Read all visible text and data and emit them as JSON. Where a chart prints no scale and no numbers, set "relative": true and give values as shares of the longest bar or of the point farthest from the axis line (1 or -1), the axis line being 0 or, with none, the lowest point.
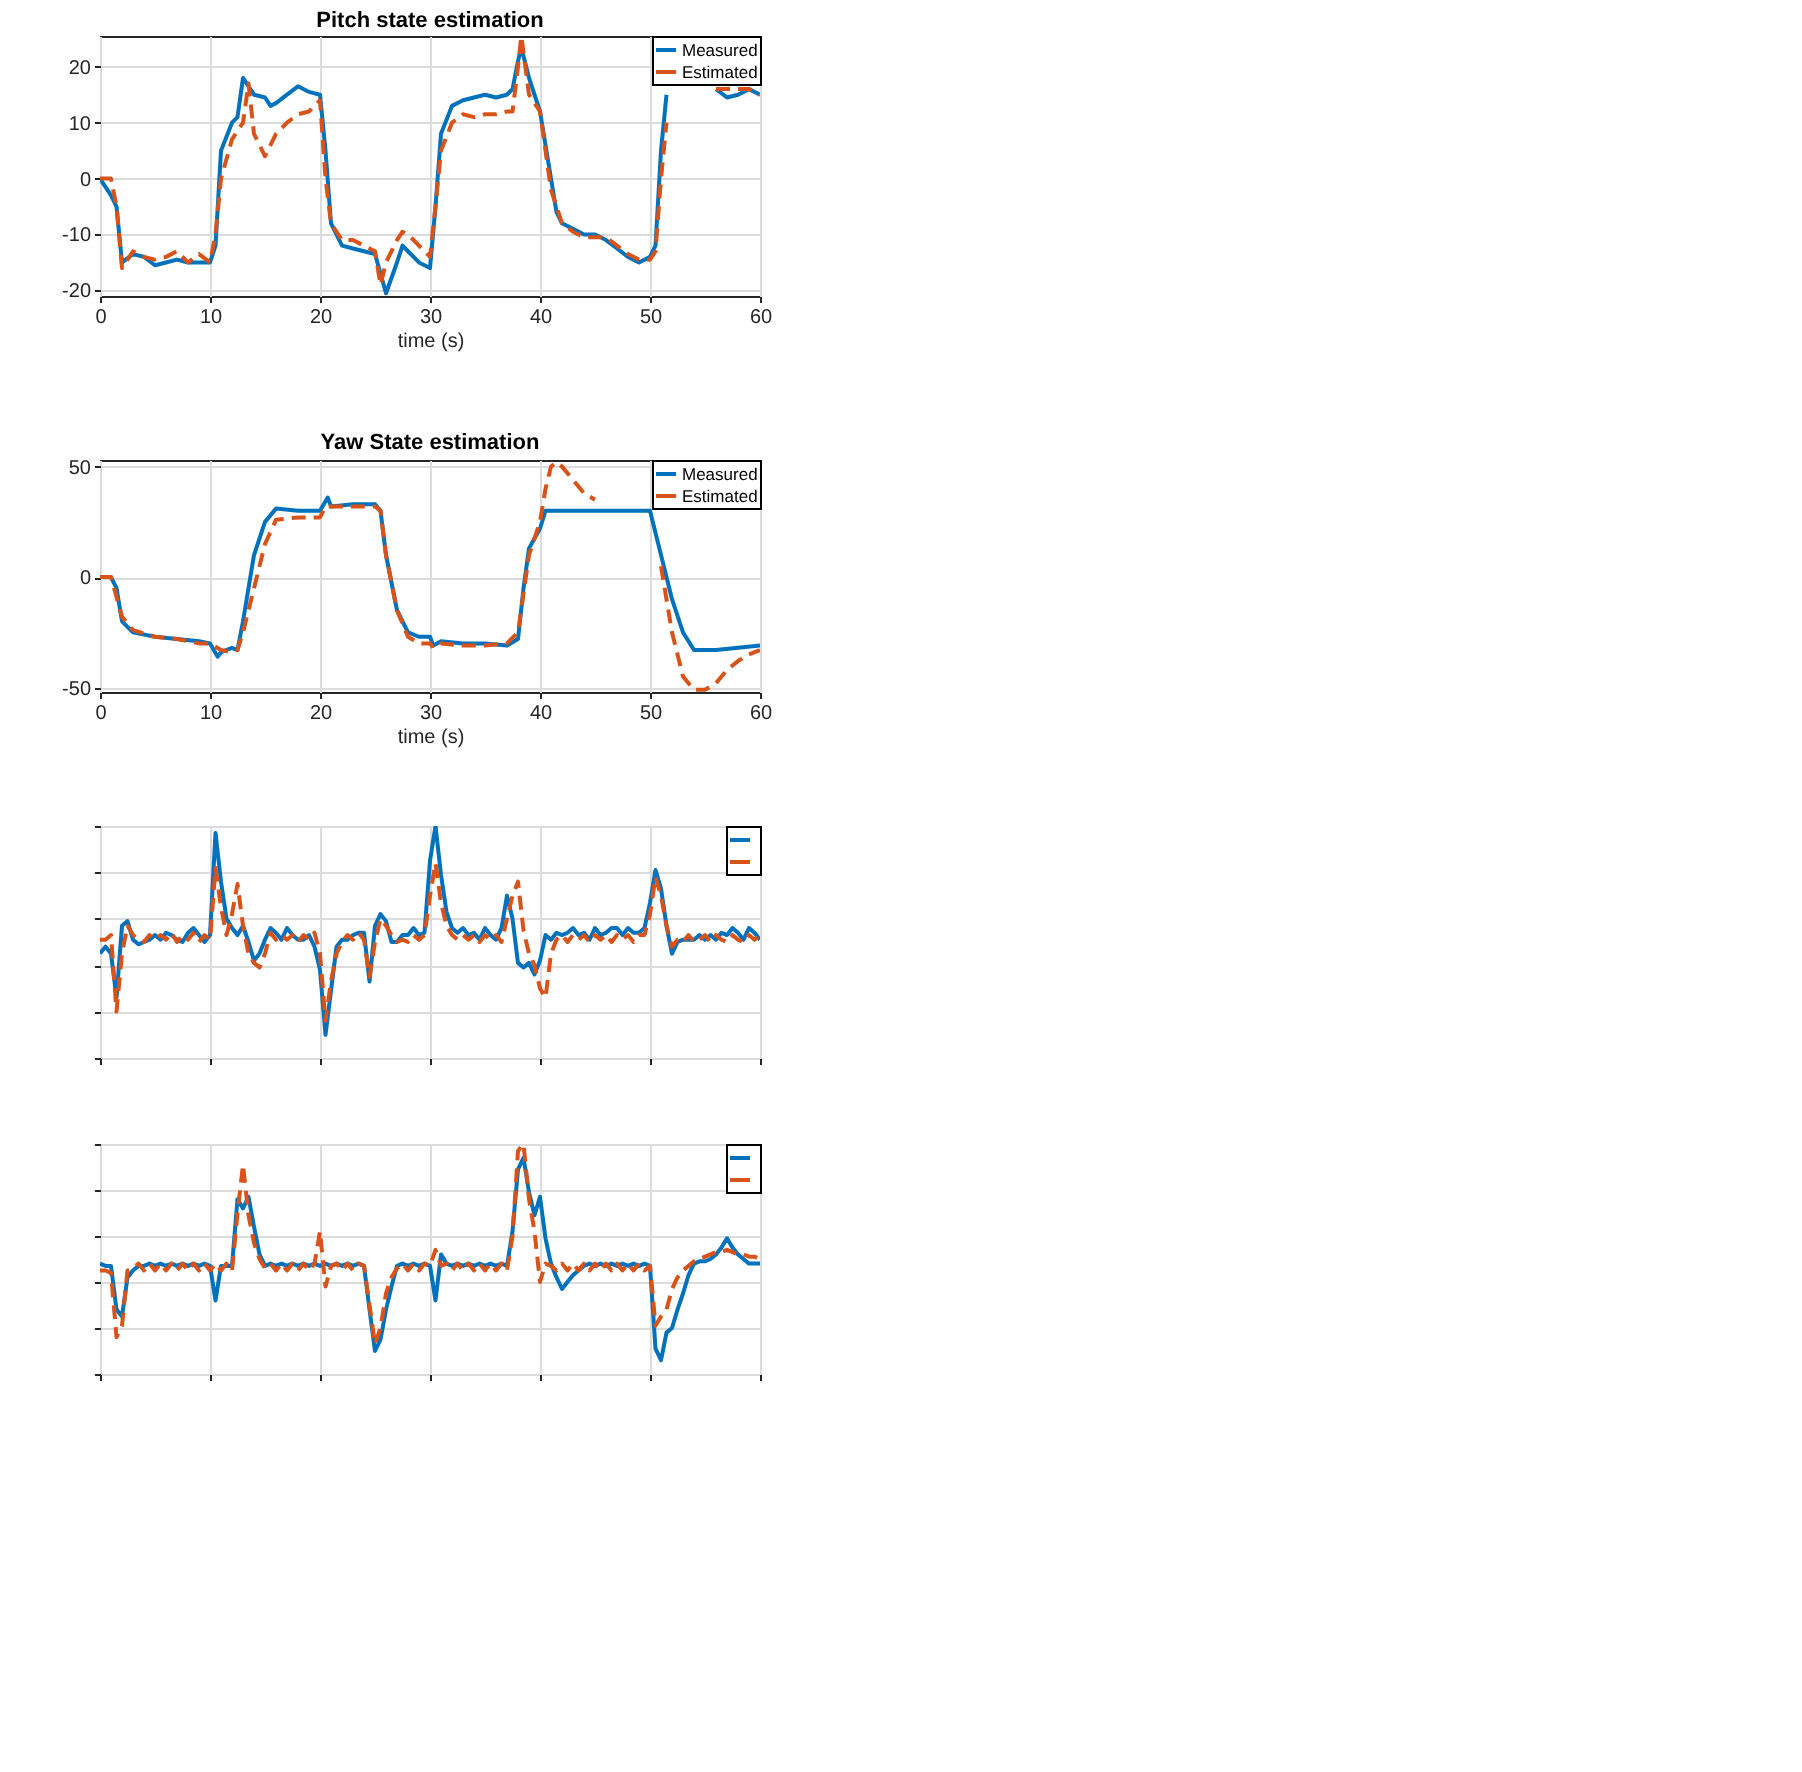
{
  "chart_data": [
    {
      "type": "line",
      "title": "Pitch state estimation",
      "xlabel": "time (s)",
      "xlim": [
        0,
        60
      ],
      "xticks": [
        0,
        10,
        20,
        30,
        40,
        50,
        60
      ],
      "ylim": [
        -21,
        25.5
      ],
      "yticks": [
        -20,
        -10,
        0,
        10,
        20
      ],
      "grid": true,
      "legend": "top right",
      "series": [
        {
          "name": "Measured",
          "color": "#0072bd",
          "line_style": "solid",
          "x": [
            0,
            1,
            1.5,
            2,
            3,
            4,
            5,
            6,
            7,
            8,
            9,
            10,
            10.5,
            11,
            12,
            12.5,
            13,
            14,
            15,
            15.5,
            16,
            17,
            18,
            19,
            20,
            20.5,
            21,
            22,
            23,
            24,
            25,
            25.5,
            26,
            27,
            27.5,
            28,
            29,
            30,
            30.5,
            31,
            32,
            33,
            34,
            35,
            36,
            37,
            37.5,
            38,
            38.3,
            39,
            40,
            41,
            41.5,
            42,
            43,
            44,
            45,
            46,
            47,
            48,
            49,
            50,
            50.5,
            51,
            51.5,
            52,
            53,
            54,
            55,
            56,
            57,
            58,
            59,
            60
          ],
          "values": [
            0,
            -3,
            -5,
            -15,
            -13.5,
            -14,
            -15.5,
            -15,
            -14.5,
            -15,
            -15,
            -15,
            -12,
            5,
            10,
            11,
            18,
            15,
            14.5,
            13,
            13.5,
            15,
            16.5,
            15.5,
            15,
            5,
            -8,
            -12,
            -12.5,
            -13,
            -13.5,
            -17,
            -20.5,
            -15,
            -12,
            -13,
            -15,
            -16,
            -5,
            8,
            13,
            14,
            14.5,
            15,
            14.5,
            15,
            16,
            21,
            23.5,
            18,
            12,
            0,
            -6,
            -8,
            -9,
            -10,
            -10,
            -11,
            -12.5,
            -14,
            -15,
            -14,
            -12,
            5,
            15,
            null,
            null,
            null,
            null,
            16,
            14.5,
            15,
            16,
            15
          ]
        },
        {
          "name": "Estimated",
          "color": "#d95319",
          "line_style": "dashed",
          "x": [
            0,
            1,
            1.5,
            2,
            3,
            4,
            5,
            6,
            7,
            8,
            9,
            10,
            10.5,
            11,
            12,
            13,
            13.5,
            14,
            15,
            16,
            17,
            18,
            19,
            20,
            20.5,
            21,
            22,
            23,
            24,
            25,
            25.5,
            26,
            27,
            27.5,
            28,
            29,
            30,
            30.5,
            31,
            32,
            33,
            34,
            35,
            36,
            37,
            37.5,
            38,
            38.3,
            39,
            40,
            41,
            42,
            43,
            44,
            45,
            46,
            47,
            48,
            49,
            50,
            50.5,
            51,
            51.5,
            52,
            53,
            54,
            55,
            56,
            57,
            58,
            59,
            60
          ],
          "values": [
            0,
            0,
            -5,
            -16,
            -13,
            -14,
            -14.5,
            -14,
            -13,
            -15,
            -13.5,
            -15,
            -10,
            0,
            7,
            10,
            17,
            8,
            4,
            8,
            10,
            11.5,
            12,
            14,
            0,
            -8,
            -11,
            -11,
            -12,
            -13,
            -19,
            -15,
            -11,
            -9.5,
            -10,
            -12,
            -14,
            -5,
            5,
            10,
            11.5,
            11,
            11.5,
            11.5,
            12,
            12,
            20,
            25.5,
            15,
            12,
            -2,
            -8,
            -9.5,
            -10.5,
            -10.5,
            -10.5,
            -12,
            -13.5,
            -14.5,
            -14.5,
            -13,
            0,
            10,
            null,
            null,
            null,
            null,
            16,
            16,
            16,
            16,
            15
          ]
        }
      ]
    },
    {
      "type": "line",
      "title": "Yaw State estimation",
      "xlabel": "time (s)",
      "xlim": [
        0,
        60
      ],
      "xticks": [
        0,
        10,
        20,
        30,
        40,
        50,
        60
      ],
      "ylim": [
        -52,
        53
      ],
      "yticks": [
        -50,
        0,
        50
      ],
      "grid": true,
      "legend": "top right",
      "series": [
        {
          "name": "Measured",
          "color": "#0072bd",
          "line_style": "solid",
          "x": [
            0,
            1,
            1.5,
            2,
            3,
            5,
            7,
            9,
            10,
            10.7,
            11,
            12,
            12.5,
            13,
            14,
            15,
            16,
            18,
            20,
            20.7,
            21,
            23,
            25,
            25.5,
            26,
            27,
            28,
            29,
            30,
            30.3,
            31,
            33,
            35,
            37,
            38,
            38.5,
            39,
            40,
            40.5,
            41,
            43,
            45,
            47,
            49,
            50,
            51,
            52,
            53,
            54,
            56,
            58,
            60
          ],
          "values": [
            0,
            0,
            -5,
            -20,
            -25,
            -27,
            -28,
            -29,
            -30,
            -36,
            -34,
            -32,
            -33,
            -20,
            10,
            25,
            31,
            30,
            30,
            36,
            32,
            33,
            33,
            30,
            10,
            -15,
            -25,
            -27,
            -27,
            -31,
            -29,
            -30,
            -30,
            -31,
            -28,
            -5,
            13,
            22,
            30,
            30,
            30,
            30,
            30,
            30,
            30,
            10,
            -10,
            -25,
            -33,
            -33,
            -32,
            -31
          ]
        },
        {
          "name": "Estimated",
          "color": "#d95319",
          "line_style": "dashed",
          "x": [
            0,
            1,
            2,
            3,
            5,
            7,
            9,
            10,
            11,
            12,
            12.5,
            13,
            14,
            15,
            16,
            18,
            20,
            20.5,
            23,
            25,
            25.5,
            26,
            27,
            28,
            29,
            30,
            30.3,
            31,
            33,
            35,
            37,
            38,
            39,
            40,
            40.5,
            41,
            41.5,
            42,
            43,
            44,
            45,
            46,
            51,
            52,
            53,
            54,
            55,
            56,
            57,
            58,
            59,
            60
          ],
          "values": [
            0,
            0,
            -18,
            -24,
            -27,
            -28,
            -30,
            -30,
            -33,
            -34,
            -33,
            -25,
            -5,
            15,
            26,
            27,
            27,
            32,
            32,
            32,
            30,
            10,
            -15,
            -27,
            -30,
            -30,
            -32,
            -30,
            -31,
            -31,
            -30,
            -25,
            10,
            25,
            40,
            50,
            52,
            50,
            44,
            38,
            35,
            null,
            5,
            -25,
            -45,
            -51,
            -51,
            -48,
            -42,
            -38,
            -35,
            -33
          ]
        }
      ]
    },
    {
      "type": "line",
      "relative": true,
      "categories": [
        null,
        null,
        null,
        null,
        null,
        null,
        null,
        null,
        null,
        null,
        null,
        null,
        null,
        null,
        null,
        null,
        null,
        null,
        null,
        null,
        null,
        null,
        null,
        null,
        null,
        null,
        null,
        null,
        null,
        null,
        null,
        null,
        null,
        null,
        null,
        null,
        null,
        null,
        null,
        null,
        null,
        null,
        null,
        null,
        null,
        null,
        null,
        null,
        null,
        null,
        null,
        null,
        null,
        null,
        null,
        null,
        null,
        null,
        null,
        null,
        null,
        null,
        null,
        null,
        null,
        null,
        null,
        null,
        null,
        null,
        null,
        null,
        null,
        null,
        null,
        null,
        null,
        null,
        null,
        null,
        null,
        null,
        null,
        null,
        null,
        null,
        null,
        null,
        null,
        null,
        null,
        null,
        null,
        null,
        null,
        null,
        null,
        null,
        null,
        null,
        null,
        null,
        null,
        null,
        null,
        null,
        null,
        null,
        null,
        null,
        null,
        null,
        null,
        null,
        null,
        null,
        null,
        null,
        null,
        null,
        null
      ],
      "grid": true,
      "legend": "top right",
      "series": [
        {
          "color": "#0072bd",
          "line_style": "solid",
          "values": [
            0.45,
            0.48,
            0.45,
            0.26,
            0.57,
            0.59,
            0.51,
            0.49,
            0.5,
            0.51,
            0.53,
            0.51,
            0.54,
            0.53,
            0.51,
            0.5,
            0.54,
            0.56,
            0.53,
            0.5,
            0.53,
            0.97,
            0.76,
            0.6,
            0.56,
            0.53,
            0.57,
            0.5,
            0.42,
            0.45,
            0.51,
            0.56,
            0.54,
            0.51,
            0.56,
            0.53,
            0.51,
            0.51,
            0.53,
            0.48,
            0.38,
            0.1,
            0.29,
            0.48,
            0.51,
            0.51,
            0.53,
            0.54,
            0.54,
            0.33,
            0.57,
            0.62,
            0.59,
            0.5,
            0.5,
            0.53,
            0.53,
            0.56,
            0.53,
            0.54,
            0.85,
            1.0,
            0.79,
            0.63,
            0.56,
            0.54,
            0.56,
            0.53,
            0.54,
            0.51,
            0.56,
            0.53,
            0.51,
            0.56,
            0.7,
            0.6,
            0.41,
            0.39,
            0.41,
            0.36,
            0.42,
            0.53,
            0.51,
            0.54,
            0.53,
            0.54,
            0.56,
            0.53,
            0.54,
            0.51,
            0.56,
            0.53,
            0.54,
            0.56,
            0.56,
            0.53,
            0.56,
            0.54,
            0.54,
            0.56,
            0.67,
            0.81,
            0.73,
            0.57,
            0.45,
            0.5,
            0.51,
            0.51,
            0.51,
            0.53,
            0.51,
            0.53,
            0.51,
            0.54,
            0.53,
            0.56,
            0.54,
            0.51,
            0.56,
            0.54,
            0.51
          ]
        },
        {
          "color": "#d95319",
          "line_style": "dashed",
          "values": [
            0.51,
            0.51,
            0.53,
            0.2,
            0.45,
            0.57,
            0.53,
            0.51,
            0.5,
            0.53,
            0.51,
            0.53,
            0.51,
            0.54,
            0.5,
            0.53,
            0.51,
            0.54,
            0.5,
            0.53,
            0.51,
            0.82,
            0.65,
            0.53,
            0.62,
            0.75,
            0.57,
            0.45,
            0.41,
            0.39,
            0.45,
            0.54,
            0.51,
            0.53,
            0.51,
            0.53,
            0.5,
            0.53,
            0.51,
            0.54,
            0.45,
            0.16,
            0.33,
            0.45,
            0.5,
            0.53,
            0.51,
            0.54,
            0.51,
            0.35,
            0.5,
            0.6,
            0.57,
            0.53,
            0.5,
            0.51,
            0.5,
            0.53,
            0.51,
            0.53,
            0.7,
            0.84,
            0.67,
            0.57,
            0.53,
            0.51,
            0.53,
            0.51,
            0.53,
            0.5,
            0.53,
            0.51,
            0.53,
            0.5,
            0.6,
            0.7,
            0.76,
            0.55,
            0.45,
            0.4,
            0.3,
            0.26,
            0.45,
            0.51,
            0.53,
            0.5,
            0.53,
            0.51,
            0.53,
            0.5,
            0.53,
            0.51,
            0.53,
            0.5,
            0.53,
            0.51,
            0.53,
            0.5,
            0.53,
            0.53,
            0.62,
            0.78,
            0.7,
            0.57,
            0.48,
            0.51,
            0.5,
            0.53,
            0.5,
            0.51,
            0.53,
            0.5,
            0.53,
            0.51,
            0.5,
            0.53,
            0.51,
            0.5,
            0.53,
            0.51,
            0.53
          ]
        }
      ]
    },
    {
      "type": "line",
      "relative": true,
      "categories": [
        null,
        null,
        null,
        null,
        null,
        null,
        null,
        null,
        null,
        null,
        null,
        null,
        null,
        null,
        null,
        null,
        null,
        null,
        null,
        null,
        null,
        null,
        null,
        null,
        null,
        null,
        null,
        null,
        null,
        null,
        null,
        null,
        null,
        null,
        null,
        null,
        null,
        null,
        null,
        null,
        null,
        null,
        null,
        null,
        null,
        null,
        null,
        null,
        null,
        null,
        null,
        null,
        null,
        null,
        null,
        null,
        null,
        null,
        null,
        null,
        null,
        null,
        null,
        null,
        null,
        null,
        null,
        null,
        null,
        null,
        null,
        null,
        null,
        null,
        null,
        null,
        null,
        null,
        null,
        null,
        null,
        null,
        null,
        null,
        null,
        null,
        null,
        null,
        null,
        null,
        null,
        null,
        null,
        null,
        null,
        null,
        null,
        null,
        null,
        null,
        null,
        null,
        null,
        null,
        null,
        null,
        null,
        null,
        null,
        null,
        null,
        null,
        null,
        null,
        null,
        null,
        null,
        null,
        null,
        null,
        null
      ],
      "grid": true,
      "legend": "top right",
      "series": [
        {
          "color": "#0072bd",
          "line_style": "solid",
          "values": [
            0.48,
            0.47,
            0.47,
            0.28,
            0.25,
            0.42,
            0.45,
            0.47,
            0.47,
            0.48,
            0.47,
            0.48,
            0.47,
            0.48,
            0.47,
            0.48,
            0.47,
            0.48,
            0.47,
            0.48,
            0.47,
            0.32,
            0.47,
            0.47,
            0.47,
            0.76,
            0.72,
            0.77,
            0.64,
            0.52,
            0.47,
            0.48,
            0.47,
            0.48,
            0.47,
            0.48,
            0.47,
            0.48,
            0.47,
            0.48,
            0.47,
            0.48,
            0.47,
            0.48,
            0.47,
            0.48,
            0.47,
            0.48,
            0.47,
            0.28,
            0.1,
            0.15,
            0.28,
            0.38,
            0.47,
            0.48,
            0.47,
            0.48,
            0.47,
            0.48,
            0.47,
            0.32,
            0.52,
            0.48,
            0.47,
            0.48,
            0.47,
            0.48,
            0.47,
            0.48,
            0.47,
            0.48,
            0.47,
            0.48,
            0.47,
            0.62,
            0.89,
            0.94,
            0.79,
            0.69,
            0.77,
            0.59,
            0.48,
            0.42,
            0.37,
            0.4,
            0.43,
            0.45,
            0.47,
            0.48,
            0.47,
            0.48,
            0.47,
            0.48,
            0.47,
            0.48,
            0.47,
            0.48,
            0.47,
            0.48,
            0.47,
            0.11,
            0.06,
            0.18,
            0.2,
            0.28,
            0.35,
            0.43,
            0.48,
            0.49,
            0.49,
            0.5,
            0.52,
            0.55,
            0.59,
            0.55,
            0.52,
            0.5,
            0.48,
            0.48,
            0.48
          ]
        },
        {
          "color": "#d95319",
          "line_style": "dashed",
          "values": [
            0.45,
            0.45,
            0.44,
            0.16,
            0.21,
            0.45,
            0.46,
            0.48,
            0.45,
            0.48,
            0.45,
            0.48,
            0.45,
            0.48,
            0.45,
            0.48,
            0.45,
            0.48,
            0.45,
            0.48,
            0.45,
            0.48,
            0.45,
            0.48,
            0.45,
            0.7,
            0.91,
            0.69,
            0.57,
            0.5,
            0.46,
            0.48,
            0.45,
            0.48,
            0.45,
            0.48,
            0.45,
            0.48,
            0.45,
            0.48,
            0.62,
            0.38,
            0.47,
            0.48,
            0.45,
            0.48,
            0.45,
            0.48,
            0.47,
            0.3,
            0.13,
            0.2,
            0.35,
            0.42,
            0.46,
            0.48,
            0.45,
            0.48,
            0.45,
            0.48,
            0.47,
            0.54,
            0.47,
            0.48,
            0.45,
            0.48,
            0.45,
            0.48,
            0.45,
            0.48,
            0.45,
            0.48,
            0.45,
            0.48,
            0.45,
            0.6,
            0.97,
            1.0,
            0.76,
            0.62,
            0.4,
            0.48,
            0.47,
            0.45,
            0.48,
            0.45,
            0.48,
            0.45,
            0.48,
            0.45,
            0.48,
            0.45,
            0.48,
            0.45,
            0.48,
            0.45,
            0.48,
            0.45,
            0.48,
            0.45,
            0.47,
            0.21,
            0.25,
            0.28,
            0.37,
            0.42,
            0.45,
            0.47,
            0.49,
            0.5,
            0.51,
            0.52,
            0.53,
            0.53,
            0.54,
            0.53,
            0.52,
            0.52,
            0.51,
            0.51,
            0.5
          ]
        }
      ]
    }
  ]
}
